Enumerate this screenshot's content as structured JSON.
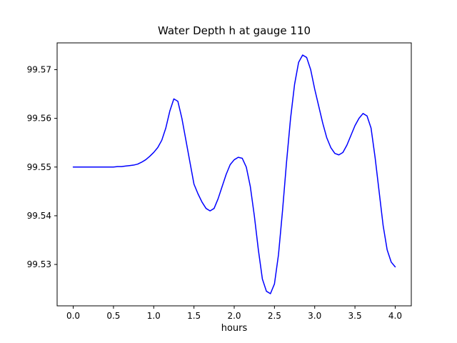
{
  "chart_data": {
    "type": "line",
    "title": "Water Depth h at gauge 110",
    "xlabel": "hours",
    "ylabel": "",
    "line_color": "#0000ff",
    "grid": false,
    "legend": "none",
    "xlim": [
      -0.2,
      4.2
    ],
    "ylim": [
      99.5215,
      99.5755
    ],
    "xticks": [
      0.0,
      0.5,
      1.0,
      1.5,
      2.0,
      2.5,
      3.0,
      3.5,
      4.0
    ],
    "xtick_labels": [
      "0.0",
      "0.5",
      "1.0",
      "1.5",
      "2.0",
      "2.5",
      "3.0",
      "3.5",
      "4.0"
    ],
    "yticks": [
      99.53,
      99.54,
      99.55,
      99.56,
      99.57
    ],
    "ytick_labels": [
      "99.53",
      "99.54",
      "99.55",
      "99.56",
      "99.57"
    ],
    "x": [
      0.0,
      0.05,
      0.1,
      0.15,
      0.2,
      0.25,
      0.3,
      0.35,
      0.4,
      0.45,
      0.5,
      0.55,
      0.6,
      0.65,
      0.7,
      0.75,
      0.8,
      0.85,
      0.9,
      0.95,
      1.0,
      1.05,
      1.1,
      1.15,
      1.2,
      1.25,
      1.3,
      1.35,
      1.4,
      1.45,
      1.5,
      1.55,
      1.6,
      1.65,
      1.7,
      1.75,
      1.8,
      1.85,
      1.9,
      1.95,
      2.0,
      2.05,
      2.1,
      2.15,
      2.2,
      2.25,
      2.3,
      2.35,
      2.4,
      2.45,
      2.5,
      2.55,
      2.6,
      2.65,
      2.7,
      2.75,
      2.8,
      2.85,
      2.9,
      2.95,
      3.0,
      3.05,
      3.1,
      3.15,
      3.2,
      3.25,
      3.3,
      3.35,
      3.4,
      3.45,
      3.5,
      3.55,
      3.6,
      3.65,
      3.7,
      3.75,
      3.8,
      3.85,
      3.9,
      3.95,
      4.0
    ],
    "y": [
      99.55,
      99.55,
      99.55,
      99.55,
      99.55,
      99.55,
      99.55,
      99.55,
      99.55,
      99.55,
      99.55,
      99.5501,
      99.5501,
      99.5502,
      99.5503,
      99.5504,
      99.5506,
      99.551,
      99.5515,
      99.5522,
      99.553,
      99.554,
      99.5555,
      99.558,
      99.5615,
      99.564,
      99.5635,
      99.56,
      99.5555,
      99.551,
      99.5465,
      99.5445,
      99.5428,
      99.5415,
      99.541,
      99.5415,
      99.5435,
      99.546,
      99.5485,
      99.5505,
      99.5515,
      99.552,
      99.5518,
      99.55,
      99.546,
      99.54,
      99.533,
      99.527,
      99.5245,
      99.524,
      99.526,
      99.532,
      99.541,
      99.551,
      99.56,
      99.567,
      99.5715,
      99.573,
      99.5725,
      99.57,
      99.566,
      99.5625,
      99.559,
      99.556,
      99.554,
      99.5528,
      99.5525,
      99.553,
      99.5545,
      99.5565,
      99.5585,
      99.56,
      99.561,
      99.5605,
      99.558,
      99.552,
      99.545,
      99.538,
      99.533,
      99.5305,
      99.5295
    ]
  }
}
